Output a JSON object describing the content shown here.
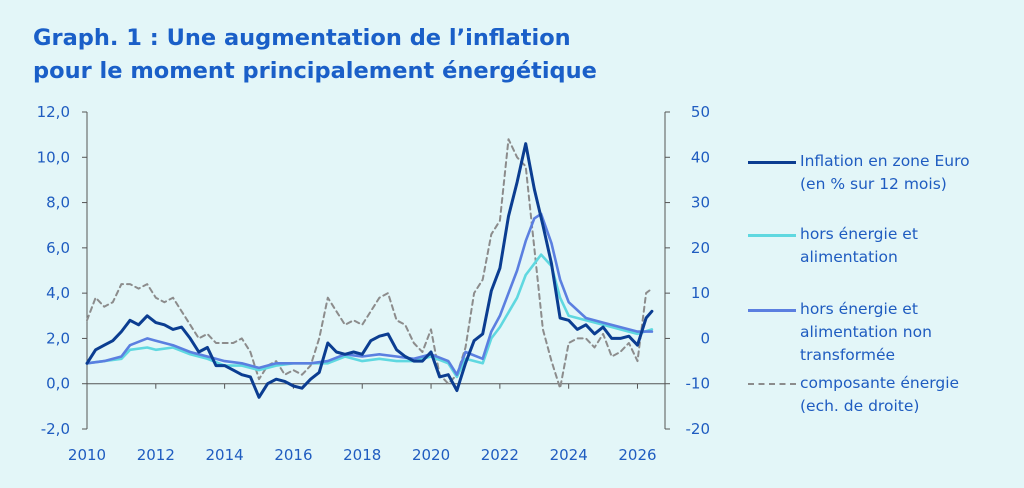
{
  "title_line1": "Graph. 1 : Une augmentation de l’inflation",
  "title_line2": "pour le moment principalement énergétique",
  "chart_data": {
    "type": "line",
    "x_ticks": [
      "2010",
      "2012",
      "2014",
      "2016",
      "2018",
      "2020",
      "2022",
      "2024",
      "2026"
    ],
    "y_left_ticks": [
      "12,0",
      "10,0",
      "8,0",
      "6,0",
      "4,0",
      "2,0",
      "0,0",
      "-2,0"
    ],
    "y_right_ticks": [
      "50",
      "40",
      "30",
      "20",
      "10",
      "0",
      "-10",
      "-20"
    ],
    "ylim_left": [
      -2,
      12
    ],
    "ylim_right": [
      -20,
      50
    ],
    "xlim": [
      2010,
      2026.8
    ],
    "grid": false,
    "legend_position": "right",
    "series": [
      {
        "name": "Inflation en zone Euro (en % sur 12 mois)",
        "axis": "left",
        "color": "#0b3d91",
        "style": "solid",
        "points": [
          [
            2010.0,
            0.9
          ],
          [
            2010.25,
            1.5
          ],
          [
            2010.5,
            1.7
          ],
          [
            2010.75,
            1.9
          ],
          [
            2011.0,
            2.3
          ],
          [
            2011.25,
            2.8
          ],
          [
            2011.5,
            2.6
          ],
          [
            2011.75,
            3.0
          ],
          [
            2012.0,
            2.7
          ],
          [
            2012.25,
            2.6
          ],
          [
            2012.5,
            2.4
          ],
          [
            2012.75,
            2.5
          ],
          [
            2013.0,
            2.0
          ],
          [
            2013.25,
            1.4
          ],
          [
            2013.5,
            1.6
          ],
          [
            2013.75,
            0.8
          ],
          [
            2014.0,
            0.8
          ],
          [
            2014.25,
            0.6
          ],
          [
            2014.5,
            0.4
          ],
          [
            2014.75,
            0.3
          ],
          [
            2015.0,
            -0.6
          ],
          [
            2015.25,
            0.0
          ],
          [
            2015.5,
            0.2
          ],
          [
            2015.75,
            0.1
          ],
          [
            2016.0,
            -0.1
          ],
          [
            2016.25,
            -0.2
          ],
          [
            2016.5,
            0.2
          ],
          [
            2016.75,
            0.5
          ],
          [
            2017.0,
            1.8
          ],
          [
            2017.25,
            1.4
          ],
          [
            2017.5,
            1.3
          ],
          [
            2017.75,
            1.4
          ],
          [
            2018.0,
            1.3
          ],
          [
            2018.25,
            1.9
          ],
          [
            2018.5,
            2.1
          ],
          [
            2018.75,
            2.2
          ],
          [
            2019.0,
            1.5
          ],
          [
            2019.25,
            1.2
          ],
          [
            2019.5,
            1.0
          ],
          [
            2019.75,
            1.0
          ],
          [
            2020.0,
            1.4
          ],
          [
            2020.25,
            0.3
          ],
          [
            2020.5,
            0.4
          ],
          [
            2020.75,
            -0.3
          ],
          [
            2021.0,
            0.9
          ],
          [
            2021.25,
            1.9
          ],
          [
            2021.5,
            2.2
          ],
          [
            2021.75,
            4.1
          ],
          [
            2022.0,
            5.1
          ],
          [
            2022.25,
            7.4
          ],
          [
            2022.5,
            8.9
          ],
          [
            2022.75,
            10.6
          ],
          [
            2023.0,
            8.6
          ],
          [
            2023.25,
            7.0
          ],
          [
            2023.5,
            5.3
          ],
          [
            2023.75,
            2.9
          ],
          [
            2024.0,
            2.8
          ],
          [
            2024.25,
            2.4
          ],
          [
            2024.5,
            2.6
          ],
          [
            2024.75,
            2.2
          ],
          [
            2025.0,
            2.5
          ],
          [
            2025.25,
            2.0
          ],
          [
            2025.5,
            2.0
          ],
          [
            2025.75,
            2.1
          ],
          [
            2026.0,
            1.7
          ],
          [
            2026.25,
            2.9
          ],
          [
            2026.42,
            3.2
          ]
        ]
      },
      {
        "name": "hors énergie et alimentation",
        "axis": "left",
        "color": "#5fd8e0",
        "style": "solid",
        "points": [
          [
            2010.0,
            0.9
          ],
          [
            2010.5,
            1.0
          ],
          [
            2011.0,
            1.1
          ],
          [
            2011.25,
            1.5
          ],
          [
            2011.75,
            1.6
          ],
          [
            2012.0,
            1.5
          ],
          [
            2012.5,
            1.6
          ],
          [
            2013.0,
            1.3
          ],
          [
            2013.5,
            1.1
          ],
          [
            2014.0,
            0.8
          ],
          [
            2014.5,
            0.8
          ],
          [
            2015.0,
            0.6
          ],
          [
            2015.5,
            0.8
          ],
          [
            2016.0,
            0.9
          ],
          [
            2016.5,
            0.9
          ],
          [
            2017.0,
            0.9
          ],
          [
            2017.5,
            1.2
          ],
          [
            2018.0,
            1.0
          ],
          [
            2018.5,
            1.1
          ],
          [
            2019.0,
            1.0
          ],
          [
            2019.5,
            1.0
          ],
          [
            2020.0,
            1.2
          ],
          [
            2020.5,
            0.9
          ],
          [
            2020.75,
            0.3
          ],
          [
            2021.0,
            1.1
          ],
          [
            2021.5,
            0.9
          ],
          [
            2021.75,
            2.0
          ],
          [
            2022.0,
            2.5
          ],
          [
            2022.5,
            3.8
          ],
          [
            2022.75,
            4.8
          ],
          [
            2023.0,
            5.3
          ],
          [
            2023.2,
            5.7
          ],
          [
            2023.5,
            5.2
          ],
          [
            2023.75,
            3.8
          ],
          [
            2024.0,
            3.0
          ],
          [
            2024.5,
            2.8
          ],
          [
            2025.0,
            2.6
          ],
          [
            2025.5,
            2.4
          ],
          [
            2026.0,
            2.2
          ],
          [
            2026.42,
            2.4
          ]
        ]
      },
      {
        "name": "hors énergie et alimentation non transformée",
        "axis": "left",
        "color": "#5b7fe0",
        "style": "solid",
        "points": [
          [
            2010.0,
            0.9
          ],
          [
            2010.5,
            1.0
          ],
          [
            2011.0,
            1.2
          ],
          [
            2011.25,
            1.7
          ],
          [
            2011.75,
            2.0
          ],
          [
            2012.0,
            1.9
          ],
          [
            2012.5,
            1.7
          ],
          [
            2013.0,
            1.4
          ],
          [
            2013.5,
            1.2
          ],
          [
            2014.0,
            1.0
          ],
          [
            2014.5,
            0.9
          ],
          [
            2015.0,
            0.7
          ],
          [
            2015.5,
            0.9
          ],
          [
            2016.0,
            0.9
          ],
          [
            2016.5,
            0.9
          ],
          [
            2017.0,
            1.0
          ],
          [
            2017.5,
            1.3
          ],
          [
            2018.0,
            1.2
          ],
          [
            2018.5,
            1.3
          ],
          [
            2019.0,
            1.2
          ],
          [
            2019.5,
            1.1
          ],
          [
            2020.0,
            1.3
          ],
          [
            2020.5,
            1.0
          ],
          [
            2020.75,
            0.4
          ],
          [
            2021.0,
            1.4
          ],
          [
            2021.5,
            1.1
          ],
          [
            2021.75,
            2.3
          ],
          [
            2022.0,
            3.0
          ],
          [
            2022.5,
            5.0
          ],
          [
            2022.75,
            6.3
          ],
          [
            2023.0,
            7.3
          ],
          [
            2023.2,
            7.5
          ],
          [
            2023.5,
            6.2
          ],
          [
            2023.75,
            4.6
          ],
          [
            2024.0,
            3.6
          ],
          [
            2024.5,
            2.9
          ],
          [
            2025.0,
            2.7
          ],
          [
            2025.5,
            2.5
          ],
          [
            2026.0,
            2.3
          ],
          [
            2026.42,
            2.3
          ]
        ]
      },
      {
        "name": "composante énergie (ech. de droite)",
        "axis": "right",
        "color": "#8c8c8c",
        "style": "dashed",
        "points": [
          [
            2010.0,
            4
          ],
          [
            2010.25,
            9
          ],
          [
            2010.5,
            7
          ],
          [
            2010.75,
            8
          ],
          [
            2011.0,
            12
          ],
          [
            2011.25,
            12
          ],
          [
            2011.5,
            11
          ],
          [
            2011.75,
            12
          ],
          [
            2012.0,
            9
          ],
          [
            2012.25,
            8
          ],
          [
            2012.5,
            9
          ],
          [
            2012.75,
            6
          ],
          [
            2013.0,
            3
          ],
          [
            2013.25,
            0
          ],
          [
            2013.5,
            1
          ],
          [
            2013.75,
            -1
          ],
          [
            2014.0,
            -1
          ],
          [
            2014.25,
            -1
          ],
          [
            2014.5,
            0
          ],
          [
            2014.75,
            -3
          ],
          [
            2015.0,
            -9
          ],
          [
            2015.25,
            -6
          ],
          [
            2015.5,
            -5
          ],
          [
            2015.75,
            -8
          ],
          [
            2016.0,
            -7
          ],
          [
            2016.25,
            -8
          ],
          [
            2016.5,
            -6
          ],
          [
            2016.75,
            0
          ],
          [
            2017.0,
            9
          ],
          [
            2017.25,
            6
          ],
          [
            2017.5,
            3
          ],
          [
            2017.75,
            4
          ],
          [
            2018.0,
            3
          ],
          [
            2018.25,
            6
          ],
          [
            2018.5,
            9
          ],
          [
            2018.75,
            10
          ],
          [
            2019.0,
            4
          ],
          [
            2019.25,
            3
          ],
          [
            2019.5,
            -1
          ],
          [
            2019.75,
            -3
          ],
          [
            2020.0,
            2
          ],
          [
            2020.25,
            -8
          ],
          [
            2020.5,
            -10
          ],
          [
            2020.75,
            -8
          ],
          [
            2021.0,
            -2
          ],
          [
            2021.25,
            10
          ],
          [
            2021.5,
            13
          ],
          [
            2021.75,
            23
          ],
          [
            2022.0,
            26
          ],
          [
            2022.25,
            44
          ],
          [
            2022.5,
            40
          ],
          [
            2022.75,
            38
          ],
          [
            2023.0,
            20
          ],
          [
            2023.25,
            2
          ],
          [
            2023.5,
            -5
          ],
          [
            2023.75,
            -11
          ],
          [
            2024.0,
            -1
          ],
          [
            2024.25,
            0
          ],
          [
            2024.5,
            0
          ],
          [
            2024.75,
            -2
          ],
          [
            2025.0,
            1
          ],
          [
            2025.25,
            -4
          ],
          [
            2025.5,
            -3
          ],
          [
            2025.75,
            -1
          ],
          [
            2026.0,
            -5
          ],
          [
            2026.25,
            10
          ],
          [
            2026.42,
            11
          ]
        ]
      }
    ]
  }
}
